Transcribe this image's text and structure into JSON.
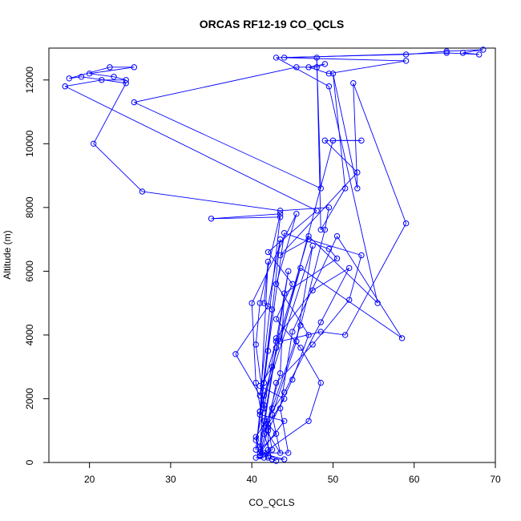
{
  "chart_data": {
    "type": "line",
    "title": "ORCAS RF12-19 CO_QCLS",
    "xlabel": "CO_QCLS",
    "ylabel": "Altitude (m)",
    "xlim": [
      15,
      70
    ],
    "ylim": [
      0,
      13000
    ],
    "xticks": [
      "20",
      "30",
      "40",
      "50",
      "60",
      "70"
    ],
    "yticks": [
      "0",
      "2000",
      "4000",
      "6000",
      "8000",
      "10000",
      "12000"
    ],
    "grid": false,
    "legend": "none",
    "series_color": "#0000ff",
    "marker": "open-circle",
    "series": [
      {
        "points": [
          [
            41.5,
            150
          ],
          [
            40.5,
            150
          ],
          [
            42.0,
            200
          ],
          [
            41.0,
            400
          ],
          [
            43.0,
            900
          ],
          [
            42.0,
            1200
          ],
          [
            44.0,
            2000
          ],
          [
            41.0,
            2400
          ],
          [
            42.5,
            3000
          ],
          [
            41.0,
            1600
          ],
          [
            42.5,
            4800
          ],
          [
            41.5,
            5000
          ],
          [
            42.0,
            6300
          ],
          [
            41.0,
            1500
          ],
          [
            44.0,
            1300
          ],
          [
            41.0,
            300
          ],
          [
            44.5,
            6000
          ],
          [
            43.0,
            3800
          ],
          [
            41.5,
            2500
          ],
          [
            43.5,
            7000
          ],
          [
            42.0,
            4900
          ],
          [
            38.0,
            3400
          ],
          [
            41.0,
            2100
          ],
          [
            43.5,
            7700
          ],
          [
            35.0,
            7650
          ],
          [
            43.5,
            7800
          ],
          [
            41.0,
            5000
          ],
          [
            40.5,
            3700
          ],
          [
            41.5,
            1800
          ],
          [
            42.5,
            400
          ],
          [
            41.0,
            200
          ],
          [
            42.0,
            1000
          ],
          [
            45.0,
            2600
          ],
          [
            47.0,
            4000
          ],
          [
            43.0,
            5600
          ],
          [
            45.5,
            7800
          ],
          [
            40.0,
            5000
          ],
          [
            40.5,
            2500
          ],
          [
            41.5,
            1100
          ],
          [
            43.5,
            300
          ],
          [
            42.5,
            1500
          ],
          [
            45.5,
            3800
          ],
          [
            47.5,
            6800
          ],
          [
            41.0,
            1600
          ],
          [
            40.5,
            400
          ],
          [
            42.0,
            3500
          ],
          [
            44.0,
            7200
          ],
          [
            49.5,
            6700
          ],
          [
            50.5,
            6400
          ],
          [
            44.0,
            5300
          ],
          [
            43.5,
            2800
          ],
          [
            41.5,
            900
          ],
          [
            42.5,
            100
          ],
          [
            44.0,
            100
          ],
          [
            41.0,
            300
          ],
          [
            42.5,
            1700
          ],
          [
            46.0,
            4300
          ],
          [
            49.0,
            7300
          ],
          [
            49.5,
            8000
          ],
          [
            43.5,
            7900
          ],
          [
            26.5,
            8500
          ],
          [
            20.5,
            10000
          ],
          [
            24.5,
            11900
          ],
          [
            19.0,
            12100
          ],
          [
            17.5,
            12050
          ],
          [
            22.5,
            12400
          ],
          [
            25.5,
            12400
          ],
          [
            20.0,
            12200
          ],
          [
            23.0,
            12100
          ],
          [
            24.5,
            12000
          ],
          [
            21.5,
            12000
          ],
          [
            17.0,
            11800
          ],
          [
            48.0,
            7900
          ],
          [
            42.0,
            6600
          ],
          [
            45.0,
            5600
          ],
          [
            43.0,
            4500
          ],
          [
            46.0,
            3600
          ],
          [
            48.5,
            2500
          ],
          [
            47.0,
            1300
          ],
          [
            42.0,
            400
          ],
          [
            41.0,
            200
          ],
          [
            40.5,
            800
          ],
          [
            44.0,
            2200
          ],
          [
            48.5,
            4400
          ],
          [
            52.0,
            6100
          ],
          [
            47.5,
            5400
          ],
          [
            43.0,
            3900
          ],
          [
            41.5,
            1700
          ],
          [
            40.5,
            700
          ],
          [
            41.5,
            300
          ],
          [
            44.5,
            300
          ],
          [
            43.5,
            1700
          ],
          [
            45.0,
            4100
          ],
          [
            50.5,
            7100
          ],
          [
            58.5,
            3900
          ],
          [
            46.0,
            6100
          ],
          [
            41.5,
            2100
          ],
          [
            41.0,
            500
          ],
          [
            41.5,
            1300
          ],
          [
            43.0,
            3600
          ],
          [
            47.0,
            7100
          ],
          [
            55.5,
            5000
          ],
          [
            49.5,
            11800
          ],
          [
            43.0,
            12700
          ],
          [
            59.0,
            12800
          ],
          [
            64.0,
            12900
          ],
          [
            68.5,
            12950
          ],
          [
            66.0,
            12850
          ],
          [
            68.0,
            12800
          ],
          [
            64.0,
            12850
          ],
          [
            44.0,
            12700
          ],
          [
            59.0,
            12600
          ],
          [
            49.5,
            12200
          ],
          [
            47.0,
            12400
          ],
          [
            49.0,
            12500
          ],
          [
            48.0,
            12400
          ],
          [
            45.5,
            12400
          ],
          [
            25.5,
            11300
          ],
          [
            48.5,
            8600
          ],
          [
            48.0,
            12700
          ],
          [
            48.5,
            7300
          ],
          [
            51.5,
            8600
          ],
          [
            50.0,
            12200
          ],
          [
            53.0,
            8600
          ],
          [
            52.5,
            11900
          ],
          [
            59.0,
            7500
          ],
          [
            51.5,
            4000
          ],
          [
            48.5,
            4100
          ],
          [
            43.5,
            3800
          ],
          [
            50.0,
            10100
          ],
          [
            53.5,
            10100
          ],
          [
            49.0,
            10100
          ],
          [
            53.0,
            9100
          ],
          [
            43.5,
            6500
          ],
          [
            47.0,
            7000
          ],
          [
            53.5,
            6500
          ],
          [
            52.0,
            5100
          ],
          [
            47.5,
            3700
          ],
          [
            43.0,
            2500
          ],
          [
            42.0,
            1100
          ],
          [
            42.0,
            150
          ],
          [
            43.0,
            50
          ]
        ]
      }
    ]
  }
}
